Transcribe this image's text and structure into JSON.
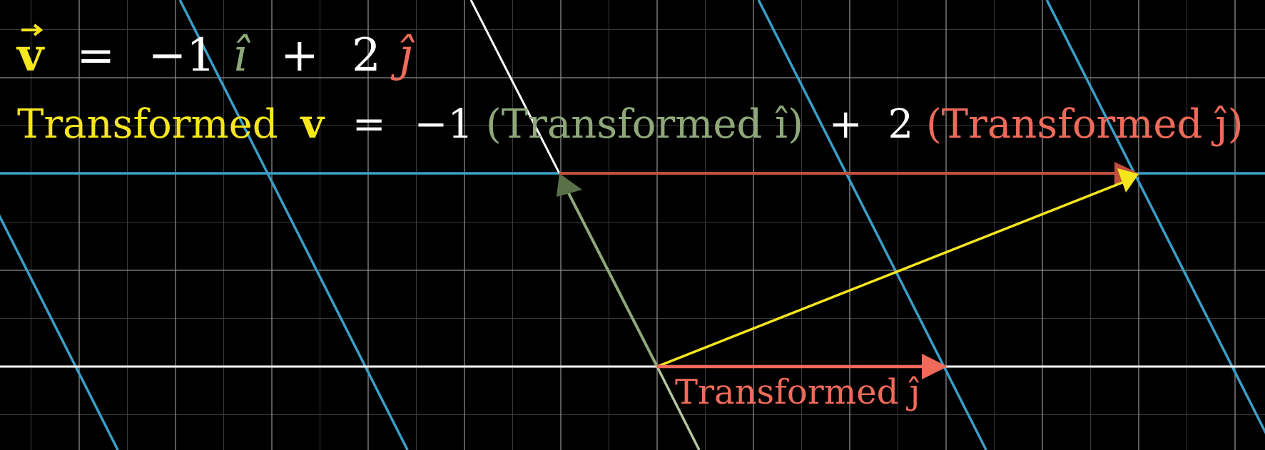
{
  "equations": {
    "line1": {
      "v": "v",
      "eq": "=",
      "coef1": "−1",
      "ihat": "î",
      "plus": "+",
      "coef2": "2",
      "jhat": "ĵ"
    },
    "line2": {
      "prefix": "Transformed",
      "v": "v",
      "eq": "=",
      "coef1": "−1",
      "i_term": "(Transformed î)",
      "plus": "+",
      "coef2": "2",
      "j_term": "(Transformed ĵ)"
    }
  },
  "vector_label": "Transformed ĵ",
  "colors": {
    "background": "#000000",
    "fine_grid": "#3a3a3a",
    "major_grid": "#8c8c8c",
    "transformed_grid": "#3a9fc8",
    "axis": "#ffffff",
    "v": "#f5e61e",
    "i_hat": "#8fa87a",
    "i_hat_arrow": "#5a7048",
    "j_hat": "#f06a5a",
    "j_hat_scaled": "#c0503c",
    "text": "#ffffff"
  }
}
